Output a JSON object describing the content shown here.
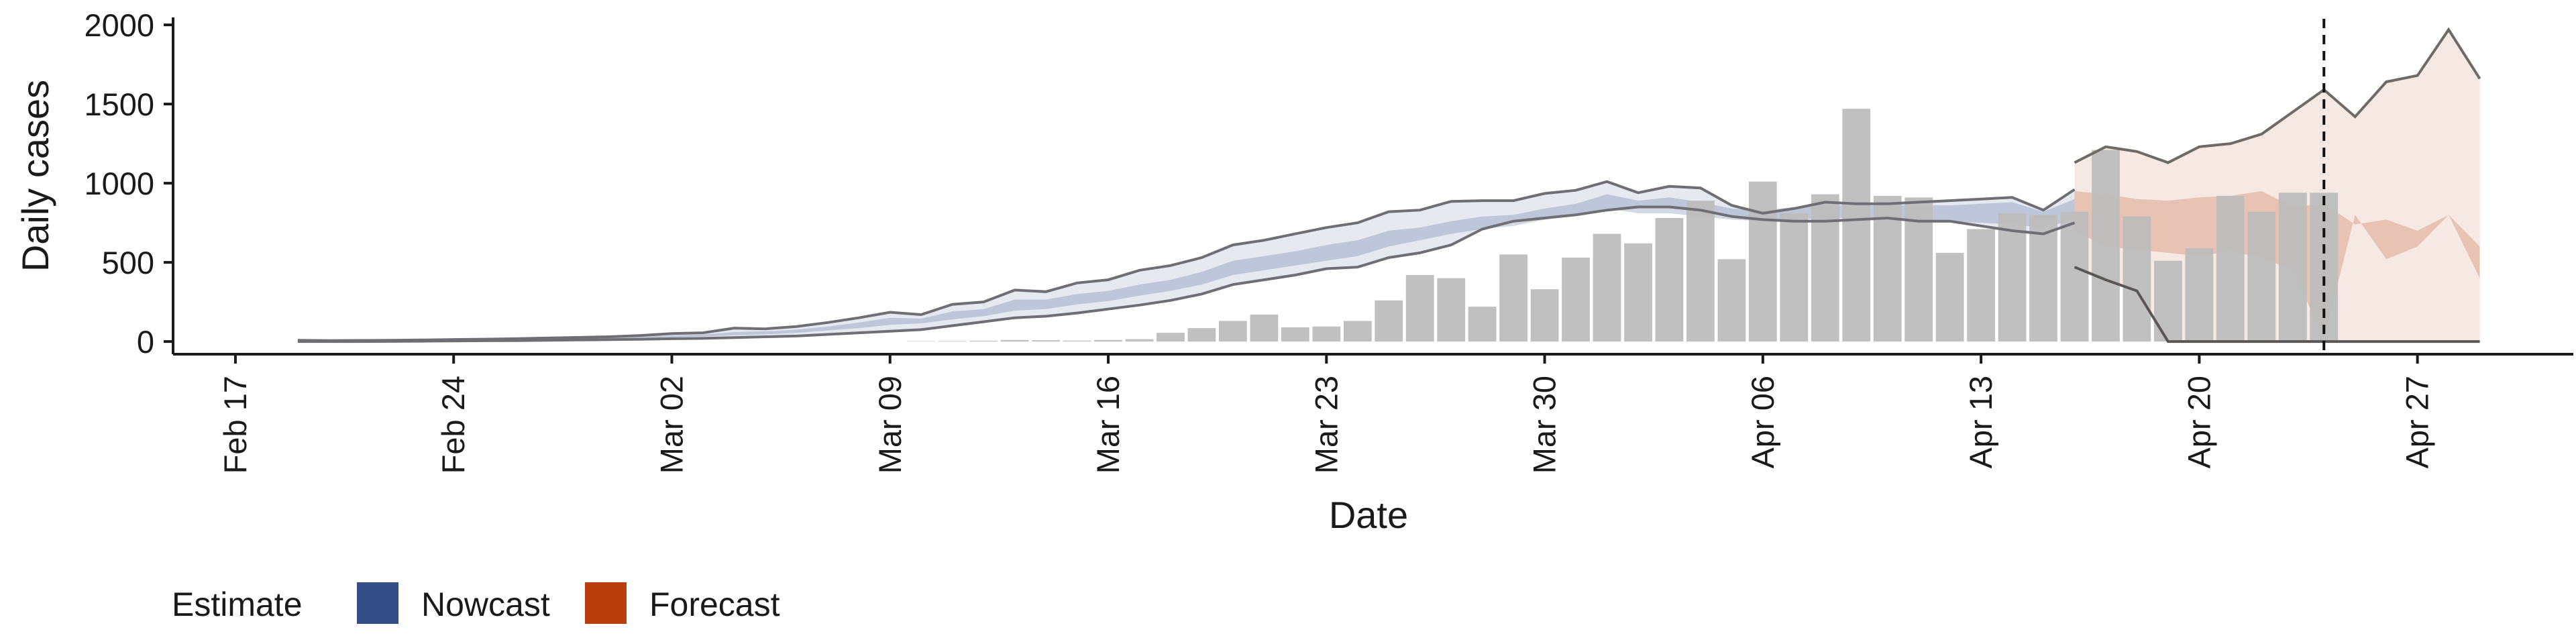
{
  "chart_data": {
    "type": "bar",
    "title": "",
    "xlabel": "Date",
    "ylabel": "Daily cases",
    "ylim": [
      -80,
      2030
    ],
    "yticks": [
      0,
      500,
      1000,
      1500,
      2000
    ],
    "x_range": [
      "2020-02-15",
      "2020-05-02"
    ],
    "xtick_labels": [
      {
        "date": "2020-02-17",
        "label": "Feb 17"
      },
      {
        "date": "2020-02-24",
        "label": "Feb 24"
      },
      {
        "date": "2020-03-02",
        "label": "Mar 02"
      },
      {
        "date": "2020-03-09",
        "label": "Mar 09"
      },
      {
        "date": "2020-03-16",
        "label": "Mar 16"
      },
      {
        "date": "2020-03-23",
        "label": "Mar 23"
      },
      {
        "date": "2020-03-30",
        "label": "Mar 30"
      },
      {
        "date": "2020-04-06",
        "label": "Apr 06"
      },
      {
        "date": "2020-04-13",
        "label": "Apr 13"
      },
      {
        "date": "2020-04-20",
        "label": "Apr 20"
      },
      {
        "date": "2020-04-27",
        "label": "Apr 27"
      }
    ],
    "reference_line_date": "2020-04-24",
    "grid": false,
    "legend": {
      "title": "Estimate",
      "position": "bottom-left",
      "entries": [
        {
          "name": "Nowcast",
          "color": "#344d87"
        },
        {
          "name": "Forecast",
          "color": "#b83f0d"
        }
      ]
    },
    "bar_color": "#bdbdbd",
    "bars": {
      "start_date": "2020-03-10",
      "values": [
        2,
        3,
        5,
        10,
        8,
        6,
        10,
        15,
        55,
        85,
        130,
        170,
        90,
        95,
        130,
        260,
        420,
        400,
        220,
        550,
        330,
        530,
        680,
        620,
        780,
        890,
        520,
        1010,
        810,
        930,
        1470,
        920,
        910,
        560,
        710,
        810,
        800,
        820,
        1210,
        790,
        510,
        590,
        920,
        820,
        940,
        940
      ]
    },
    "nowcast": {
      "start_date": "2020-02-19",
      "upper": [
        8,
        6,
        7,
        8,
        10,
        13,
        15,
        18,
        22,
        26,
        30,
        38,
        50,
        55,
        85,
        80,
        95,
        120,
        150,
        185,
        170,
        235,
        250,
        325,
        315,
        370,
        390,
        450,
        480,
        530,
        610,
        640,
        680,
        720,
        750,
        820,
        830,
        885,
        890,
        890,
        935,
        955,
        1010,
        940,
        980,
        970,
        860,
        810,
        840,
        880,
        870,
        870,
        880,
        890,
        900,
        910,
        830,
        960
      ],
      "upper_inner": [
        5,
        5,
        5,
        6,
        8,
        10,
        12,
        14,
        17,
        20,
        24,
        30,
        38,
        44,
        60,
        65,
        75,
        95,
        120,
        150,
        145,
        190,
        205,
        265,
        265,
        300,
        320,
        360,
        390,
        440,
        510,
        540,
        570,
        610,
        640,
        700,
        720,
        760,
        790,
        800,
        840,
        870,
        930,
        890,
        910,
        880,
        840,
        830,
        850,
        860,
        860,
        860,
        860,
        860,
        870,
        880,
        820,
        900
      ],
      "lower_inner": [
        3,
        3,
        4,
        5,
        6,
        8,
        10,
        12,
        14,
        16,
        19,
        22,
        28,
        32,
        40,
        45,
        55,
        70,
        85,
        105,
        115,
        140,
        160,
        195,
        205,
        235,
        255,
        290,
        320,
        360,
        420,
        450,
        480,
        510,
        540,
        600,
        640,
        680,
        710,
        730,
        770,
        800,
        840,
        810,
        810,
        790,
        770,
        760,
        770,
        780,
        780,
        770,
        760,
        760,
        750,
        740,
        720,
        770
      ],
      "lower": [
        0,
        0,
        0,
        1,
        2,
        4,
        5,
        6,
        8,
        10,
        12,
        14,
        18,
        20,
        25,
        30,
        35,
        45,
        55,
        65,
        75,
        100,
        125,
        150,
        160,
        180,
        205,
        230,
        260,
        300,
        360,
        390,
        420,
        460,
        470,
        530,
        560,
        610,
        710,
        760,
        780,
        800,
        830,
        850,
        850,
        830,
        790,
        770,
        760,
        760,
        770,
        780,
        760,
        760,
        730,
        700,
        680,
        750
      ]
    },
    "forecast": {
      "start_date": "2020-04-16",
      "upper": [
        1130,
        1230,
        1200,
        1130,
        1230,
        1250,
        1310,
        1450,
        1590,
        1420,
        1640,
        1680,
        1970,
        1660
      ],
      "upper_inner": [
        950,
        930,
        900,
        890,
        910,
        920,
        950,
        850,
        870,
        740,
        770,
        700,
        800,
        600
      ],
      "lower_inner": [
        700,
        600,
        580,
        560,
        540,
        570,
        530,
        450,
        20,
        800,
        520,
        600,
        800,
        400
      ],
      "lower": [
        470,
        390,
        320,
        0,
        0,
        0,
        0,
        0,
        0,
        0,
        0,
        0,
        0,
        0
      ]
    }
  }
}
